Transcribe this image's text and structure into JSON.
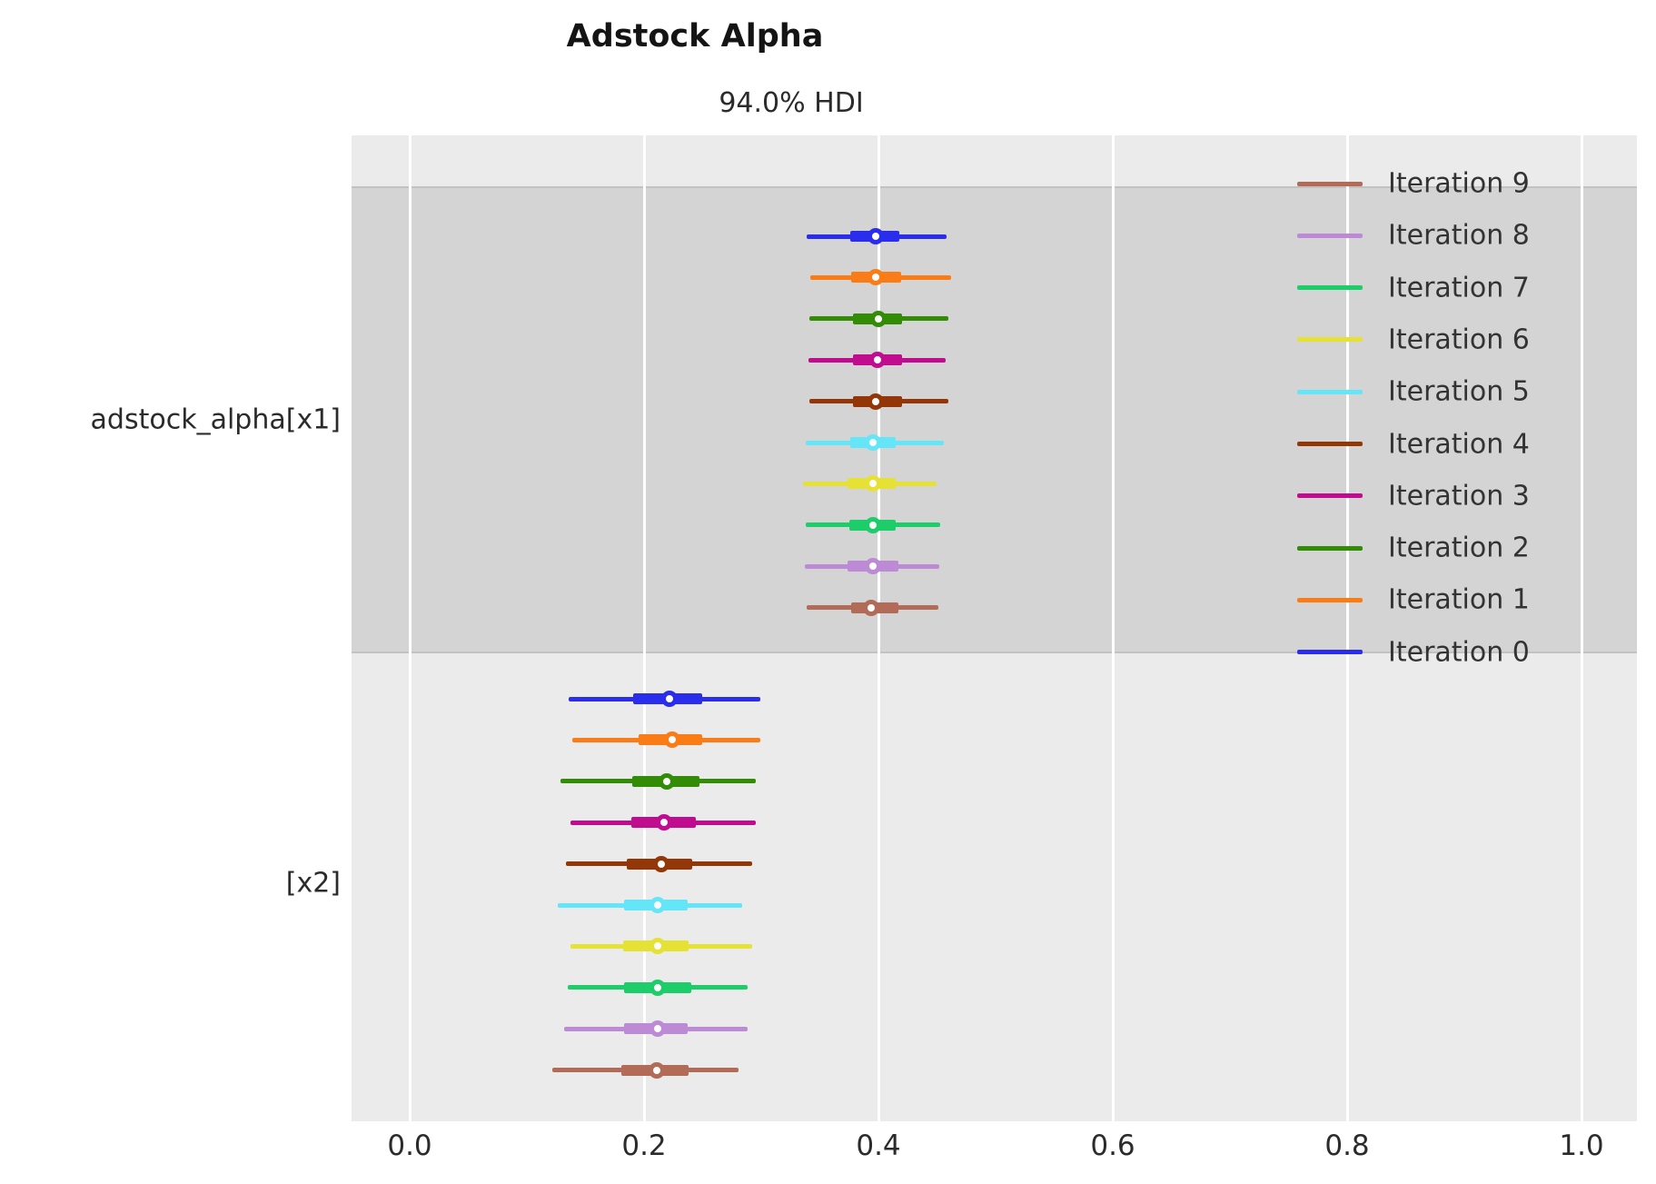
{
  "title": "Adstock Alpha",
  "subtitle": "94.0% HDI",
  "theme": {
    "figure_bg": "#ffffff",
    "axes_bg": "#ebebeb",
    "group_band_bg": "#d4d4d4",
    "gridline_color": "#ffffff",
    "text_color": "#2b2b2b",
    "marker_face": "#fdfdfd"
  },
  "chart_data": {
    "type": "forest",
    "title": "Adstock Alpha",
    "subtitle": "94.0% HDI",
    "hdi_probability": "94.0%",
    "xlim": [
      -0.05,
      1.05
    ],
    "x_ticks": [
      0.0,
      0.2,
      0.4,
      0.6,
      0.8,
      1.0
    ],
    "x_tick_labels": [
      "0.0",
      "0.2",
      "0.4",
      "0.6",
      "0.8",
      "1.0"
    ],
    "grid": "vertical-white",
    "legend_position": "upper-right-inside",
    "legend": [
      {
        "label": "Iteration 9",
        "color": "#b16b57"
      },
      {
        "label": "Iteration 8",
        "color": "#bd8ad5"
      },
      {
        "label": "Iteration 7",
        "color": "#1ccd6a"
      },
      {
        "label": "Iteration 6",
        "color": "#e6e135"
      },
      {
        "label": "Iteration 5",
        "color": "#65e5f8"
      },
      {
        "label": "Iteration 4",
        "color": "#933708"
      },
      {
        "label": "Iteration 3",
        "color": "#c10c90"
      },
      {
        "label": "Iteration 2",
        "color": "#328c06"
      },
      {
        "label": "Iteration 1",
        "color": "#fa7c17"
      },
      {
        "label": "Iteration 0",
        "color": "#2a2eec"
      }
    ],
    "groups": [
      {
        "name": "adstock_alpha[x1]",
        "shaded": true,
        "rows": [
          {
            "series": "Iteration 0",
            "color": "#2a2eec",
            "median": 0.398,
            "quartile": [
              0.376,
              0.418
            ],
            "hdi": [
              0.339,
              0.458
            ]
          },
          {
            "series": "Iteration 1",
            "color": "#fa7c17",
            "median": 0.398,
            "quartile": [
              0.377,
              0.419
            ],
            "hdi": [
              0.342,
              0.462
            ]
          },
          {
            "series": "Iteration 2",
            "color": "#328c06",
            "median": 0.4,
            "quartile": [
              0.378,
              0.42
            ],
            "hdi": [
              0.341,
              0.46
            ]
          },
          {
            "series": "Iteration 3",
            "color": "#c10c90",
            "median": 0.399,
            "quartile": [
              0.378,
              0.42
            ],
            "hdi": [
              0.34,
              0.457
            ]
          },
          {
            "series": "Iteration 4",
            "color": "#933708",
            "median": 0.398,
            "quartile": [
              0.378,
              0.42
            ],
            "hdi": [
              0.341,
              0.46
            ]
          },
          {
            "series": "Iteration 5",
            "color": "#65e5f8",
            "median": 0.395,
            "quartile": [
              0.376,
              0.415
            ],
            "hdi": [
              0.338,
              0.456
            ]
          },
          {
            "series": "Iteration 6",
            "color": "#e6e135",
            "median": 0.395,
            "quartile": [
              0.374,
              0.415
            ],
            "hdi": [
              0.336,
              0.45
            ]
          },
          {
            "series": "Iteration 7",
            "color": "#1ccd6a",
            "median": 0.395,
            "quartile": [
              0.375,
              0.415
            ],
            "hdi": [
              0.338,
              0.453
            ]
          },
          {
            "series": "Iteration 8",
            "color": "#bd8ad5",
            "median": 0.395,
            "quartile": [
              0.374,
              0.417
            ],
            "hdi": [
              0.337,
              0.452
            ]
          },
          {
            "series": "Iteration 9",
            "color": "#b16b57",
            "median": 0.394,
            "quartile": [
              0.377,
              0.417
            ],
            "hdi": [
              0.339,
              0.451
            ]
          }
        ]
      },
      {
        "name": "[x2]",
        "shaded": false,
        "rows": [
          {
            "series": "Iteration 0",
            "color": "#2a2eec",
            "median": 0.222,
            "quartile": [
              0.191,
              0.25
            ],
            "hdi": [
              0.136,
              0.299
            ]
          },
          {
            "series": "Iteration 1",
            "color": "#fa7c17",
            "median": 0.224,
            "quartile": [
              0.195,
              0.25
            ],
            "hdi": [
              0.139,
              0.299
            ]
          },
          {
            "series": "Iteration 2",
            "color": "#328c06",
            "median": 0.219,
            "quartile": [
              0.19,
              0.247
            ],
            "hdi": [
              0.129,
              0.295
            ]
          },
          {
            "series": "Iteration 3",
            "color": "#c10c90",
            "median": 0.217,
            "quartile": [
              0.189,
              0.244
            ],
            "hdi": [
              0.137,
              0.295
            ]
          },
          {
            "series": "Iteration 4",
            "color": "#933708",
            "median": 0.215,
            "quartile": [
              0.185,
              0.241
            ],
            "hdi": [
              0.133,
              0.292
            ]
          },
          {
            "series": "Iteration 5",
            "color": "#65e5f8",
            "median": 0.212,
            "quartile": [
              0.183,
              0.237
            ],
            "hdi": [
              0.126,
              0.284
            ]
          },
          {
            "series": "Iteration 6",
            "color": "#e6e135",
            "median": 0.212,
            "quartile": [
              0.182,
              0.238
            ],
            "hdi": [
              0.137,
              0.292
            ]
          },
          {
            "series": "Iteration 7",
            "color": "#1ccd6a",
            "median": 0.212,
            "quartile": [
              0.183,
              0.24
            ],
            "hdi": [
              0.135,
              0.288
            ]
          },
          {
            "series": "Iteration 8",
            "color": "#bd8ad5",
            "median": 0.212,
            "quartile": [
              0.183,
              0.237
            ],
            "hdi": [
              0.132,
              0.288
            ]
          },
          {
            "series": "Iteration 9",
            "color": "#b16b57",
            "median": 0.211,
            "quartile": [
              0.181,
              0.238
            ],
            "hdi": [
              0.122,
              0.281
            ]
          }
        ]
      }
    ]
  }
}
